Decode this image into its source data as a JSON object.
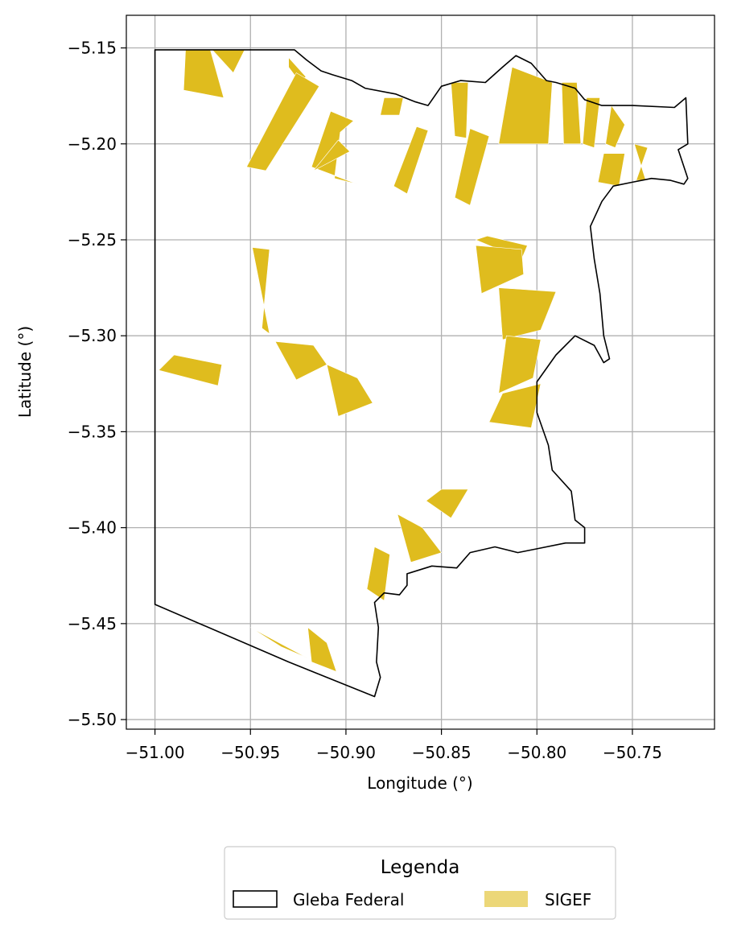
{
  "chart_data": {
    "type": "map",
    "xlabel": "Longitude (°)",
    "ylabel": "Latitude (°)",
    "xlim": [
      -51.015,
      -50.707
    ],
    "ylim": [
      -5.505,
      -5.133
    ],
    "x_ticks": [
      -51.0,
      -50.95,
      -50.9,
      -50.85,
      -50.8,
      -50.75
    ],
    "x_tick_labels": [
      "−51.00",
      "−50.95",
      "−50.90",
      "−50.85",
      "−50.80",
      "−50.75"
    ],
    "y_ticks": [
      -5.15,
      -5.2,
      -5.25,
      -5.3,
      -5.35,
      -5.4,
      -5.45,
      -5.5
    ],
    "y_tick_labels": [
      "−5.15",
      "−5.20",
      "−5.25",
      "−5.30",
      "−5.35",
      "−5.40",
      "−5.45",
      "−5.50"
    ],
    "grid": true,
    "legend": {
      "title": "Legenda",
      "placement": "bottom-center",
      "entries": [
        {
          "label": "Gleba Federal",
          "style": "outline",
          "color": "#000000"
        },
        {
          "label": "SIGEF",
          "style": "fill",
          "color": "#DFBC1E"
        }
      ]
    },
    "colors": {
      "sigef_fill": "#DFBC1E",
      "boundary": "#000000",
      "grid": "#b0b0b0"
    },
    "boundary": [
      [
        -51.0,
        -5.151
      ],
      [
        -50.927,
        -5.151
      ],
      [
        -50.921,
        -5.156
      ],
      [
        -50.913,
        -5.162
      ],
      [
        -50.907,
        -5.164
      ],
      [
        -50.897,
        -5.167
      ],
      [
        -50.89,
        -5.171
      ],
      [
        -50.874,
        -5.174
      ],
      [
        -50.864,
        -5.178
      ],
      [
        -50.857,
        -5.18
      ],
      [
        -50.85,
        -5.17
      ],
      [
        -50.84,
        -5.167
      ],
      [
        -50.827,
        -5.168
      ],
      [
        -50.818,
        -5.16
      ],
      [
        -50.811,
        -5.154
      ],
      [
        -50.803,
        -5.158
      ],
      [
        -50.795,
        -5.167
      ],
      [
        -50.79,
        -5.168
      ],
      [
        -50.78,
        -5.171
      ],
      [
        -50.775,
        -5.177
      ],
      [
        -50.766,
        -5.18
      ],
      [
        -50.75,
        -5.18
      ],
      [
        -50.728,
        -5.181
      ],
      [
        -50.722,
        -5.176
      ],
      [
        -50.721,
        -5.2
      ],
      [
        -50.726,
        -5.203
      ],
      [
        -50.721,
        -5.218
      ],
      [
        -50.723,
        -5.221
      ],
      [
        -50.73,
        -5.219
      ],
      [
        -50.74,
        -5.218
      ],
      [
        -50.75,
        -5.22
      ],
      [
        -50.76,
        -5.222
      ],
      [
        -50.766,
        -5.23
      ],
      [
        -50.772,
        -5.243
      ],
      [
        -50.77,
        -5.26
      ],
      [
        -50.767,
        -5.278
      ],
      [
        -50.765,
        -5.3
      ],
      [
        -50.762,
        -5.312
      ],
      [
        -50.765,
        -5.314
      ],
      [
        -50.77,
        -5.305
      ],
      [
        -50.78,
        -5.3
      ],
      [
        -50.79,
        -5.31
      ],
      [
        -50.8,
        -5.324
      ],
      [
        -50.8,
        -5.34
      ],
      [
        -50.794,
        -5.357
      ],
      [
        -50.792,
        -5.37
      ],
      [
        -50.782,
        -5.381
      ],
      [
        -50.78,
        -5.396
      ],
      [
        -50.775,
        -5.4
      ],
      [
        -50.775,
        -5.408
      ],
      [
        -50.785,
        -5.408
      ],
      [
        -50.8,
        -5.411
      ],
      [
        -50.81,
        -5.413
      ],
      [
        -50.822,
        -5.41
      ],
      [
        -50.835,
        -5.413
      ],
      [
        -50.842,
        -5.421
      ],
      [
        -50.855,
        -5.42
      ],
      [
        -50.868,
        -5.424
      ],
      [
        -50.868,
        -5.43
      ],
      [
        -50.872,
        -5.435
      ],
      [
        -50.88,
        -5.434
      ],
      [
        -50.885,
        -5.439
      ],
      [
        -50.883,
        -5.452
      ],
      [
        -50.884,
        -5.47
      ],
      [
        -50.882,
        -5.478
      ],
      [
        -50.885,
        -5.488
      ],
      [
        -50.93,
        -5.47
      ],
      [
        -51.0,
        -5.44
      ],
      [
        -51.0,
        -5.151
      ]
    ],
    "sigef_parcels": [
      [
        [
          -50.984,
          -5.151
        ],
        [
          -50.971,
          -5.151
        ],
        [
          -50.964,
          -5.176
        ],
        [
          -50.985,
          -5.172
        ]
      ],
      [
        [
          -50.97,
          -5.151
        ],
        [
          -50.953,
          -5.151
        ],
        [
          -50.959,
          -5.163
        ]
      ],
      [
        [
          -50.93,
          -5.155
        ],
        [
          -50.921,
          -5.165
        ],
        [
          -50.924,
          -5.168
        ],
        [
          -50.93,
          -5.16
        ]
      ],
      [
        [
          -50.926,
          -5.163
        ],
        [
          -50.914,
          -5.17
        ],
        [
          -50.942,
          -5.214
        ],
        [
          -50.952,
          -5.212
        ]
      ],
      [
        [
          -50.903,
          -5.194
        ],
        [
          -50.896,
          -5.188
        ],
        [
          -50.908,
          -5.183
        ],
        [
          -50.918,
          -5.212
        ],
        [
          -50.894,
          -5.221
        ],
        [
          -50.906,
          -5.218
        ]
      ],
      [
        [
          -50.904,
          -5.198
        ],
        [
          -50.898,
          -5.204
        ],
        [
          -50.917,
          -5.214
        ]
      ],
      [
        [
          -50.88,
          -5.176
        ],
        [
          -50.87,
          -5.176
        ],
        [
          -50.872,
          -5.185
        ],
        [
          -50.882,
          -5.185
        ]
      ],
      [
        [
          -50.863,
          -5.191
        ],
        [
          -50.857,
          -5.193
        ],
        [
          -50.868,
          -5.226
        ],
        [
          -50.875,
          -5.222
        ]
      ],
      [
        [
          -50.845,
          -5.168
        ],
        [
          -50.836,
          -5.168
        ],
        [
          -50.837,
          -5.197
        ],
        [
          -50.843,
          -5.196
        ]
      ],
      [
        [
          -50.835,
          -5.192
        ],
        [
          -50.825,
          -5.196
        ],
        [
          -50.835,
          -5.232
        ],
        [
          -50.843,
          -5.228
        ]
      ],
      [
        [
          -50.813,
          -5.16
        ],
        [
          -50.792,
          -5.168
        ],
        [
          -50.794,
          -5.2
        ],
        [
          -50.82,
          -5.2
        ]
      ],
      [
        [
          -50.787,
          -5.168
        ],
        [
          -50.779,
          -5.168
        ],
        [
          -50.777,
          -5.2
        ],
        [
          -50.786,
          -5.2
        ]
      ],
      [
        [
          -50.774,
          -5.176
        ],
        [
          -50.767,
          -5.176
        ],
        [
          -50.77,
          -5.202
        ],
        [
          -50.776,
          -5.2
        ]
      ],
      [
        [
          -50.761,
          -5.18
        ],
        [
          -50.754,
          -5.19
        ],
        [
          -50.759,
          -5.202
        ],
        [
          -50.764,
          -5.2
        ]
      ],
      [
        [
          -50.765,
          -5.205
        ],
        [
          -50.754,
          -5.205
        ],
        [
          -50.757,
          -5.222
        ],
        [
          -50.768,
          -5.22
        ]
      ],
      [
        [
          -50.749,
          -5.2
        ],
        [
          -50.742,
          -5.202
        ],
        [
          -50.748,
          -5.219
        ],
        [
          -50.743,
          -5.219
        ]
      ],
      [
        [
          -50.832,
          -5.25
        ],
        [
          -50.826,
          -5.248
        ],
        [
          -50.805,
          -5.253
        ],
        [
          -50.808,
          -5.26
        ]
      ],
      [
        [
          -50.832,
          -5.253
        ],
        [
          -50.808,
          -5.255
        ],
        [
          -50.807,
          -5.268
        ],
        [
          -50.829,
          -5.278
        ]
      ],
      [
        [
          -50.82,
          -5.275
        ],
        [
          -50.79,
          -5.277
        ],
        [
          -50.798,
          -5.297
        ],
        [
          -50.818,
          -5.302
        ]
      ],
      [
        [
          -50.816,
          -5.3
        ],
        [
          -50.798,
          -5.302
        ],
        [
          -50.802,
          -5.322
        ],
        [
          -50.82,
          -5.33
        ]
      ],
      [
        [
          -50.818,
          -5.33
        ],
        [
          -50.798,
          -5.325
        ],
        [
          -50.803,
          -5.348
        ],
        [
          -50.825,
          -5.345
        ]
      ],
      [
        [
          -50.949,
          -5.254
        ],
        [
          -50.94,
          -5.255
        ],
        [
          -50.944,
          -5.296
        ],
        [
          -50.94,
          -5.299
        ]
      ],
      [
        [
          -50.937,
          -5.303
        ],
        [
          -50.917,
          -5.305
        ],
        [
          -50.91,
          -5.315
        ],
        [
          -50.926,
          -5.323
        ]
      ],
      [
        [
          -50.91,
          -5.315
        ],
        [
          -50.894,
          -5.322
        ],
        [
          -50.886,
          -5.335
        ],
        [
          -50.904,
          -5.342
        ]
      ],
      [
        [
          -50.99,
          -5.31
        ],
        [
          -50.965,
          -5.315
        ],
        [
          -50.967,
          -5.326
        ],
        [
          -50.998,
          -5.318
        ]
      ],
      [
        [
          -50.858,
          -5.386
        ],
        [
          -50.85,
          -5.38
        ],
        [
          -50.836,
          -5.38
        ],
        [
          -50.845,
          -5.395
        ]
      ],
      [
        [
          -50.873,
          -5.393
        ],
        [
          -50.86,
          -5.4
        ],
        [
          -50.85,
          -5.413
        ],
        [
          -50.866,
          -5.418
        ]
      ],
      [
        [
          -50.885,
          -5.41
        ],
        [
          -50.877,
          -5.414
        ],
        [
          -50.88,
          -5.438
        ],
        [
          -50.889,
          -5.432
        ]
      ],
      [
        [
          -50.95,
          -5.452
        ],
        [
          -50.934,
          -5.462
        ],
        [
          -50.92,
          -5.468
        ],
        [
          -50.935,
          -5.46
        ]
      ],
      [
        [
          -50.92,
          -5.452
        ],
        [
          -50.91,
          -5.46
        ],
        [
          -50.905,
          -5.475
        ],
        [
          -50.918,
          -5.47
        ]
      ]
    ]
  }
}
